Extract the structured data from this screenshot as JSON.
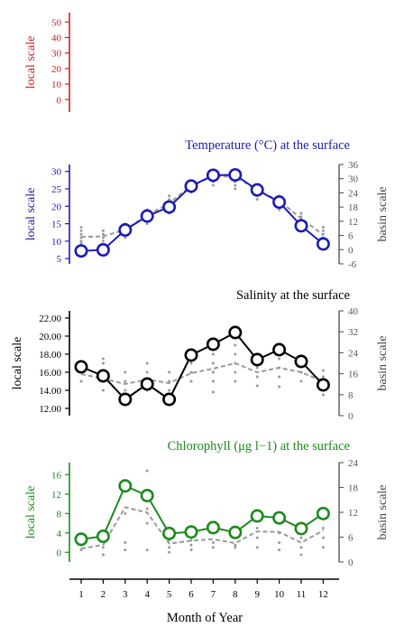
{
  "chart_data": {
    "type": "line",
    "x": [
      1,
      2,
      3,
      4,
      5,
      6,
      7,
      8,
      9,
      10,
      11,
      12
    ],
    "xticks": [
      "1",
      "2",
      "3",
      "4",
      "5",
      "6",
      "7",
      "8",
      "9",
      "10",
      "11",
      "12"
    ],
    "xlabel": "Month of Year",
    "panels": [
      {
        "id": "top",
        "title": "",
        "color": "#cc2222",
        "left_label": "local scale",
        "left_ticks": [
          0,
          10,
          20,
          30,
          40,
          50
        ],
        "left_range": [
          -8,
          56
        ],
        "right_label": "",
        "right_ticks": [],
        "local_series": [],
        "basin_series": [],
        "basin_points": []
      },
      {
        "id": "temperature",
        "title": "Temperature (°C) at the surface",
        "color": "#1c1cb4",
        "left_label": "local scale",
        "left_ticks": [
          5,
          10,
          15,
          20,
          25,
          30
        ],
        "left_range": [
          3.5,
          32
        ],
        "right_label": "basin scale",
        "right_ticks": [
          -6,
          0,
          6,
          12,
          18,
          24,
          30,
          36
        ],
        "right_range": [
          -6,
          36
        ],
        "local_series": [
          {
            "name": "local",
            "values": [
              7.2,
              7.5,
              13.2,
              17.2,
              19.8,
              25.8,
              28.9,
              29.0,
              24.7,
              21.2,
              14.4,
              9.2
            ]
          }
        ],
        "basin_series": [
          {
            "name": "basin",
            "values": [
              11.2,
              11.4,
              13.3,
              17.5,
              20.8,
              26.0,
              28.5,
              28.6,
              24.6,
              21.6,
              16.5,
              11.8
            ]
          }
        ],
        "basin_points": [
          [
            1,
            8
          ],
          [
            1,
            9.5
          ],
          [
            1,
            10
          ],
          [
            1,
            11
          ],
          [
            1,
            12
          ],
          [
            1,
            13
          ],
          [
            1,
            14
          ],
          [
            2,
            9
          ],
          [
            2,
            10
          ],
          [
            2,
            11
          ],
          [
            2,
            12
          ],
          [
            2,
            13
          ],
          [
            3,
            11
          ],
          [
            3,
            12
          ],
          [
            3,
            13
          ],
          [
            3,
            14
          ],
          [
            3,
            15
          ],
          [
            4,
            15
          ],
          [
            4,
            16
          ],
          [
            4,
            17
          ],
          [
            4,
            18
          ],
          [
            4,
            19
          ],
          [
            5,
            18
          ],
          [
            5,
            19
          ],
          [
            5,
            20
          ],
          [
            5,
            21
          ],
          [
            5,
            22
          ],
          [
            5,
            23
          ],
          [
            6,
            24
          ],
          [
            6,
            25
          ],
          [
            6,
            26
          ],
          [
            6,
            27
          ],
          [
            7,
            26
          ],
          [
            7,
            27
          ],
          [
            7,
            28
          ],
          [
            7,
            29
          ],
          [
            8,
            25
          ],
          [
            8,
            26
          ],
          [
            8,
            27
          ],
          [
            8,
            28
          ],
          [
            8,
            29
          ],
          [
            9,
            22
          ],
          [
            9,
            23
          ],
          [
            9,
            24
          ],
          [
            9,
            25
          ],
          [
            9,
            26
          ],
          [
            10,
            19
          ],
          [
            10,
            20
          ],
          [
            10,
            21
          ],
          [
            10,
            22
          ],
          [
            10,
            23
          ],
          [
            11,
            14
          ],
          [
            11,
            15
          ],
          [
            11,
            16
          ],
          [
            11,
            17
          ],
          [
            11,
            18
          ],
          [
            12,
            9
          ],
          [
            12,
            10
          ],
          [
            12,
            11
          ],
          [
            12,
            12
          ],
          [
            12,
            13
          ],
          [
            12,
            14
          ]
        ]
      },
      {
        "id": "salinity",
        "title": "Salinity at the surface",
        "color": "#000000",
        "left_label": "local scale",
        "left_ticks": [
          "12.00",
          "14.00",
          "16.00",
          "18.00",
          "20.00",
          "22.00"
        ],
        "left_range": [
          11.2,
          22.8
        ],
        "right_label": "basin scale",
        "right_ticks": [
          0,
          8,
          16,
          24,
          32,
          40
        ],
        "right_range": [
          0,
          40
        ],
        "local_series": [
          {
            "name": "local",
            "values": [
              16.6,
              15.6,
              13.0,
              14.7,
              13.0,
              17.9,
              19.1,
              20.4,
              17.4,
              18.5,
              17.2,
              14.6
            ]
          }
        ],
        "basin_series": [
          {
            "name": "basin",
            "values": [
              15.8,
              15.3,
              14.7,
              15.2,
              14.8,
              15.9,
              16.4,
              17.0,
              16.0,
              16.5,
              16.0,
              15.0
            ]
          }
        ],
        "basin_points": [
          [
            1,
            15
          ],
          [
            1,
            16
          ],
          [
            1,
            17
          ],
          [
            2,
            14
          ],
          [
            2,
            15
          ],
          [
            2,
            16
          ],
          [
            2,
            17
          ],
          [
            2,
            17.5
          ],
          [
            3,
            13.5
          ],
          [
            3,
            14
          ],
          [
            3,
            15
          ],
          [
            3,
            16
          ],
          [
            4,
            14
          ],
          [
            4,
            15
          ],
          [
            4,
            16
          ],
          [
            4,
            17
          ],
          [
            5,
            13
          ],
          [
            5,
            14
          ],
          [
            5,
            15
          ],
          [
            5,
            16
          ],
          [
            6,
            15
          ],
          [
            6,
            16
          ],
          [
            6,
            17
          ],
          [
            6,
            18
          ],
          [
            7,
            13.8
          ],
          [
            7,
            15
          ],
          [
            7,
            16
          ],
          [
            7,
            17
          ],
          [
            7,
            18
          ],
          [
            8,
            15
          ],
          [
            8,
            16
          ],
          [
            8,
            17
          ],
          [
            8,
            18
          ],
          [
            8,
            19
          ],
          [
            8,
            20.5
          ],
          [
            9,
            14.5
          ],
          [
            9,
            15.5
          ],
          [
            9,
            16.5
          ],
          [
            9,
            17.5
          ],
          [
            10,
            14.4
          ],
          [
            10,
            15.5
          ],
          [
            10,
            16.5
          ],
          [
            10,
            17.5
          ],
          [
            11,
            15
          ],
          [
            11,
            16
          ],
          [
            11,
            17
          ],
          [
            12,
            13.5
          ],
          [
            12,
            14.5
          ],
          [
            12,
            15.5
          ],
          [
            12,
            16.2
          ]
        ]
      },
      {
        "id": "chlorophyll",
        "title": "Chlorophyll (μg l−1) at the surface",
        "color": "#1d8a1d",
        "left_label": "local scale",
        "left_ticks": [
          0,
          4,
          8,
          12,
          16
        ],
        "left_range": [
          -2,
          18.5
        ],
        "right_label": "basin scale",
        "right_ticks": [
          0,
          6,
          12,
          18,
          24
        ],
        "right_range": [
          0,
          24
        ],
        "local_series": [
          {
            "name": "local",
            "values": [
              2.7,
              3.3,
              13.7,
              11.7,
              3.9,
              4.2,
              5.1,
              4.1,
              7.5,
              7.1,
              4.9,
              8.0
            ]
          }
        ],
        "basin_series": [
          {
            "name": "basin",
            "values": [
              0.8,
              1.5,
              9.3,
              8.2,
              1.8,
              2.4,
              2.7,
              1.9,
              4.3,
              4.2,
              2.0,
              4.5
            ]
          }
        ],
        "basin_points": [
          [
            1,
            0.5
          ],
          [
            1,
            1.5
          ],
          [
            1,
            3
          ],
          [
            2,
            -0.5
          ],
          [
            2,
            1
          ],
          [
            2,
            3.5
          ],
          [
            3,
            0.5
          ],
          [
            3,
            2
          ],
          [
            3,
            8
          ],
          [
            3,
            14.5
          ],
          [
            4,
            0.5
          ],
          [
            4,
            6
          ],
          [
            4,
            9
          ],
          [
            4,
            16.8
          ],
          [
            5,
            0
          ],
          [
            5,
            1
          ],
          [
            5,
            2.5
          ],
          [
            5,
            4
          ],
          [
            6,
            0.5
          ],
          [
            6,
            1.5
          ],
          [
            6,
            2.5
          ],
          [
            7,
            1
          ],
          [
            7,
            2
          ],
          [
            7,
            6
          ],
          [
            8,
            1
          ],
          [
            8,
            1.5
          ],
          [
            8,
            3
          ],
          [
            9,
            1
          ],
          [
            9,
            3
          ],
          [
            9,
            5
          ],
          [
            9,
            8.5
          ],
          [
            10,
            0.5
          ],
          [
            10,
            2
          ],
          [
            10,
            4
          ],
          [
            11,
            -0.5
          ],
          [
            11,
            1
          ],
          [
            11,
            3
          ],
          [
            12,
            1
          ],
          [
            12,
            3
          ],
          [
            12,
            5
          ]
        ]
      }
    ]
  }
}
